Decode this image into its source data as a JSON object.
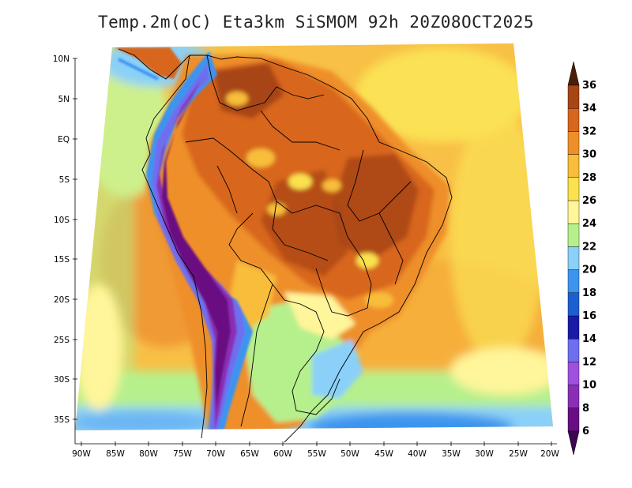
{
  "title": "Temp.2m(oC) Eta3km SiSMOM 92h 20Z08OCT2025",
  "lat_labels": [
    "10N",
    "5N",
    "EQ",
    "5S",
    "10S",
    "15S",
    "20S",
    "25S",
    "30S",
    "35S"
  ],
  "lon_labels": [
    "90W",
    "85W",
    "80W",
    "75W",
    "70W",
    "65W",
    "60W",
    "55W",
    "50W",
    "45W",
    "40W",
    "35W",
    "30W",
    "25W",
    "20W"
  ],
  "colorbar": {
    "labels": [
      "6",
      "8",
      "10",
      "12",
      "14",
      "16",
      "18",
      "20",
      "22",
      "24",
      "26",
      "28",
      "30",
      "32",
      "34",
      "36"
    ],
    "colors": [
      "#6a0d83",
      "#8a2fb5",
      "#a050e0",
      "#6e6ef0",
      "#1a1aa8",
      "#1c5fd0",
      "#3c94ee",
      "#8ad0f8",
      "#b6f08c",
      "#fff59a",
      "#fbe14e",
      "#f8bd3a",
      "#ee8f2a",
      "#d8661c",
      "#a84514",
      "#6a2a0c"
    ],
    "min_arrow_color": "#3d0650",
    "max_arrow_color": "#4a1e08"
  },
  "legend_units": "oC"
}
